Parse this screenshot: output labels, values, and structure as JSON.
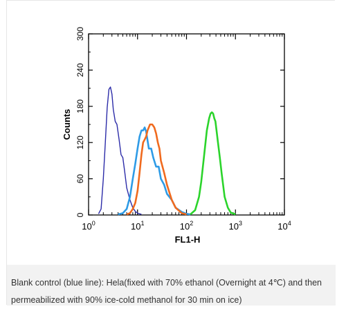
{
  "chart_data": {
    "type": "line",
    "xlabel": "FL1-H",
    "ylabel": "Counts",
    "x_scale": "log",
    "xlim": [
      1,
      10000
    ],
    "ylim": [
      0,
      300
    ],
    "x_ticks": [
      {
        "value": 1,
        "base": "10",
        "exp": "0"
      },
      {
        "value": 10,
        "base": "10",
        "exp": "1"
      },
      {
        "value": 100,
        "base": "10",
        "exp": "2"
      },
      {
        "value": 1000,
        "base": "10",
        "exp": "3"
      },
      {
        "value": 10000,
        "base": "10",
        "exp": "4"
      }
    ],
    "y_ticks": [
      0,
      60,
      120,
      180,
      240,
      300
    ],
    "series": [
      {
        "color": "#2b2ba8",
        "x": [
          1.6,
          1.8,
          2.0,
          2.2,
          2.4,
          2.6,
          2.8,
          3.0,
          3.2,
          3.5,
          3.8,
          4.2,
          4.6,
          5.0,
          5.5,
          6.0,
          7.0,
          8.0,
          9.0,
          10.0,
          11.0,
          12.0
        ],
        "y": [
          2,
          10,
          60,
          120,
          178,
          208,
          212,
          200,
          175,
          155,
          150,
          125,
          100,
          95,
          70,
          45,
          25,
          12,
          6,
          3,
          2,
          1
        ]
      },
      {
        "color": "#2e9be6",
        "x": [
          4,
          5,
          6,
          7,
          8,
          9,
          10,
          11,
          12,
          13,
          14,
          15,
          17,
          19,
          21,
          24,
          27,
          30,
          35,
          40,
          50,
          60,
          80,
          100,
          120
        ],
        "y": [
          1,
          3,
          10,
          30,
          60,
          85,
          110,
          130,
          140,
          140,
          145,
          138,
          110,
          110,
          95,
          80,
          80,
          60,
          50,
          35,
          25,
          12,
          5,
          2,
          1
        ]
      },
      {
        "color": "#f06a1e",
        "x": [
          6,
          7,
          8,
          9,
          10,
          11,
          12,
          13,
          14,
          15,
          16,
          18,
          20,
          22,
          24,
          26,
          28,
          30,
          35,
          40,
          50,
          60,
          80,
          100
        ],
        "y": [
          1,
          3,
          10,
          20,
          40,
          70,
          100,
          120,
          125,
          130,
          140,
          150,
          150,
          145,
          135,
          120,
          110,
          90,
          70,
          50,
          25,
          12,
          3,
          1
        ]
      },
      {
        "color": "#2bd42b",
        "x": [
          120,
          150,
          180,
          200,
          230,
          260,
          290,
          310,
          330,
          350,
          370,
          390,
          410,
          440,
          480,
          520,
          560,
          600,
          700,
          800,
          1000
        ],
        "y": [
          1,
          8,
          30,
          55,
          100,
          140,
          160,
          168,
          170,
          168,
          160,
          155,
          140,
          120,
          95,
          70,
          50,
          30,
          12,
          4,
          1
        ]
      }
    ]
  },
  "caption": "Blank control (blue line): Hela(fixed with 70% ethanol (Overnight at 4℃) and then permeabilized with 90% ice-cold methanol for 30 min on ice)"
}
